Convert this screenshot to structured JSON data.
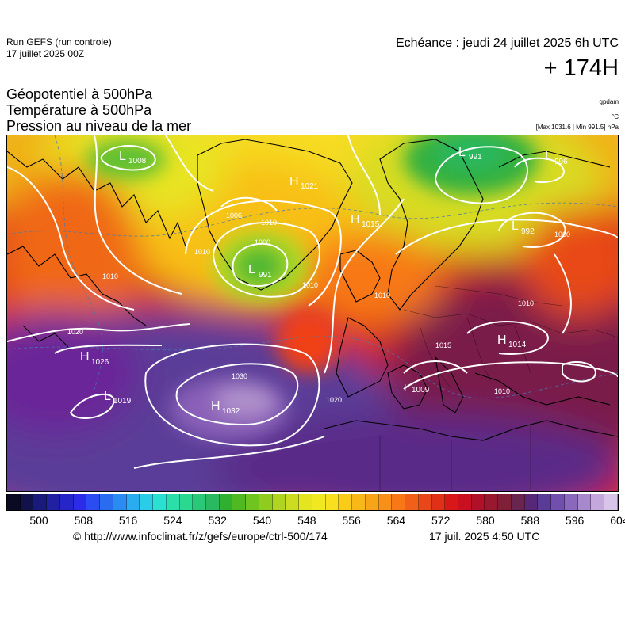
{
  "header": {
    "run_title": "Run GEFS (run controle)",
    "run_date": "17 juillet 2025 00Z",
    "valid_time": "Echéance : jeudi 24 juillet 2025 6h UTC",
    "lead_time": "+ 174H"
  },
  "parameters": [
    "Géopotentiel à 500hPa",
    "Température à 500hPa",
    "Pression au niveau de la mer"
  ],
  "units": {
    "geopotential": "gpdam",
    "temperature": "°C",
    "pressure_range": "[Max 1031.6 | Min 991.5] hPa"
  },
  "pressure_centers": [
    {
      "letter": "L",
      "value": "1008"
    },
    {
      "letter": "H",
      "value": "1021"
    },
    {
      "letter": "L",
      "value": "991"
    },
    {
      "letter": "H",
      "value": "1015"
    },
    {
      "letter": "L",
      "value": "991"
    },
    {
      "letter": "L",
      "value": "996"
    },
    {
      "letter": "L",
      "value": "992"
    },
    {
      "letter": "H",
      "value": "1014"
    },
    {
      "letter": "H",
      "value": "1026"
    },
    {
      "letter": "L",
      "value": "1019"
    },
    {
      "letter": "H",
      "value": "1032"
    },
    {
      "letter": "L",
      "value": "1009"
    }
  ],
  "isobar_labels": [
    "1006",
    "1010",
    "1000",
    "1010",
    "1010",
    "1020",
    "1030",
    "1020",
    "1010",
    "1000",
    "1010",
    "1010",
    "1010",
    "1015"
  ],
  "colorbar": {
    "ticks": [
      "500",
      "508",
      "516",
      "524",
      "532",
      "540",
      "548",
      "556",
      "564",
      "572",
      "580",
      "588",
      "596",
      "604"
    ],
    "colors": [
      "#0a0a23",
      "#12124a",
      "#1a1a78",
      "#2020a0",
      "#2626c8",
      "#2c2ce8",
      "#2a4cf0",
      "#2a6cf0",
      "#2a8cf0",
      "#2aacf0",
      "#2acce8",
      "#2ae0d0",
      "#2ae0a8",
      "#2ad890",
      "#2ac878",
      "#2ab860",
      "#30b030",
      "#50b820",
      "#70c420",
      "#90cc20",
      "#b0d420",
      "#ccdc20",
      "#e4e420",
      "#f0e820",
      "#f8e020",
      "#f8cc18",
      "#f8b818",
      "#f8a418",
      "#f89018",
      "#f87818",
      "#f06018",
      "#e84818",
      "#e03018",
      "#d81818",
      "#c81020",
      "#b01028",
      "#981830",
      "#802038",
      "#6a2450",
      "#582878",
      "#5a3c98",
      "#7050ac",
      "#8a68bc",
      "#a888cc",
      "#c4a8dc",
      "#d8c4e8"
    ]
  },
  "footer": {
    "url": "© http://www.infoclimat.fr/z/gefs/europe/ctrl-500/174",
    "generated": "17 juil. 2025  4:50 UTC"
  }
}
